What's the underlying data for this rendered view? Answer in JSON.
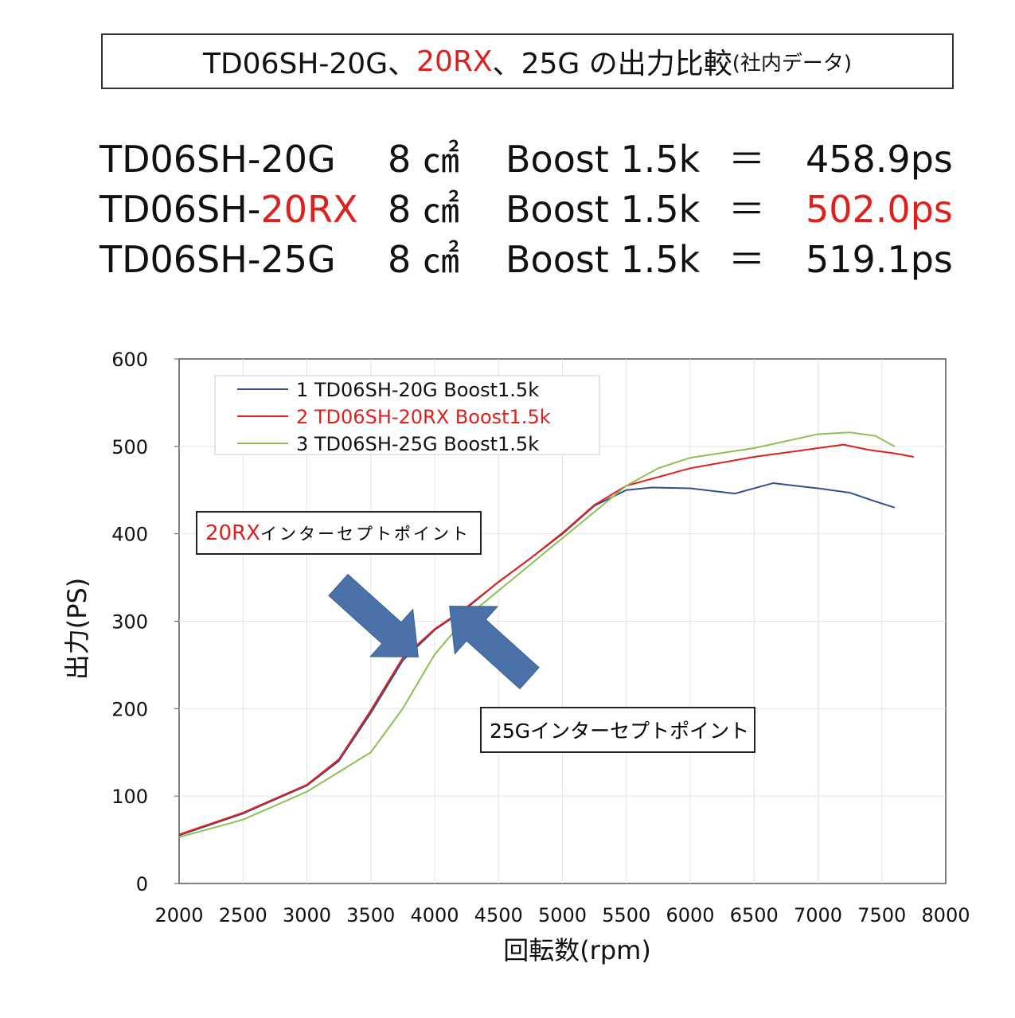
{
  "title": {
    "part1": "TD06SH-20G、",
    "part_red": "20RX",
    "part2": "、25G の出力比較",
    "note": "(社内データ)"
  },
  "specs": [
    {
      "model_prefix": "TD06SH-",
      "model_suffix": "20G",
      "area": "8 ㎠",
      "boost": "Boost 1.5k",
      "eq": "＝",
      "power": "458.9ps",
      "highlight": false
    },
    {
      "model_prefix": "TD06SH-",
      "model_suffix": "20RX",
      "area": "8 ㎠",
      "boost": "Boost 1.5k",
      "eq": "＝",
      "power": "502.0ps",
      "highlight": true
    },
    {
      "model_prefix": "TD06SH-",
      "model_suffix": "25G",
      "area": "8 ㎠",
      "boost": "Boost 1.5k",
      "eq": "＝",
      "power": "519.1ps",
      "highlight": false
    }
  ],
  "annotations": {
    "rx_red": "20RX",
    "rx_text": "インターセプトポイント",
    "g25_text": "25Gインターセプトポイント"
  },
  "colors": {
    "accent_red": "#e0201c",
    "arrow": "#4a72a8"
  },
  "chart_data": {
    "type": "line",
    "xlabel": "回転数(rpm)",
    "ylabel": "出力(PS)",
    "xlim": [
      2000,
      8000
    ],
    "ylim": [
      0,
      600
    ],
    "xticks": [
      "2000",
      "2500",
      "3000",
      "3500",
      "4000",
      "4500",
      "5000",
      "5500",
      "6000",
      "6500",
      "7000",
      "7500",
      "8000"
    ],
    "yticks": [
      "0",
      "100",
      "200",
      "300",
      "400",
      "500",
      "600"
    ],
    "grid": true,
    "legend": "top-left",
    "series": [
      {
        "name": "1 TD06SH-20G Boost1.5k",
        "color": "#2f4f8f",
        "points": [
          [
            2000,
            55
          ],
          [
            2500,
            80
          ],
          [
            3000,
            112
          ],
          [
            3250,
            140
          ],
          [
            3500,
            195
          ],
          [
            3750,
            255
          ],
          [
            4000,
            290
          ],
          [
            4250,
            315
          ],
          [
            4500,
            345
          ],
          [
            4750,
            372
          ],
          [
            5000,
            400
          ],
          [
            5250,
            432
          ],
          [
            5500,
            450
          ],
          [
            5700,
            453
          ],
          [
            6000,
            452
          ],
          [
            6350,
            446
          ],
          [
            6650,
            458
          ],
          [
            7000,
            452
          ],
          [
            7250,
            447
          ],
          [
            7450,
            437
          ],
          [
            7600,
            430
          ]
        ]
      },
      {
        "name": "2 TD06SH-20RX Boost1.5k",
        "color": "#e0201c",
        "points": [
          [
            2000,
            56
          ],
          [
            2500,
            81
          ],
          [
            3000,
            113
          ],
          [
            3250,
            142
          ],
          [
            3500,
            198
          ],
          [
            3750,
            258
          ],
          [
            4000,
            291
          ],
          [
            4250,
            316
          ],
          [
            4500,
            345
          ],
          [
            4750,
            372
          ],
          [
            5000,
            401
          ],
          [
            5250,
            433
          ],
          [
            5500,
            455
          ],
          [
            6000,
            475
          ],
          [
            6500,
            488
          ],
          [
            7000,
            498
          ],
          [
            7200,
            502
          ],
          [
            7400,
            496
          ],
          [
            7600,
            492
          ],
          [
            7750,
            488
          ]
        ]
      },
      {
        "name": "3 TD06SH-25G Boost1.5k",
        "color": "#8cc152",
        "points": [
          [
            2000,
            53
          ],
          [
            2500,
            73
          ],
          [
            3000,
            105
          ],
          [
            3500,
            150
          ],
          [
            3750,
            200
          ],
          [
            4000,
            262
          ],
          [
            4250,
            305
          ],
          [
            4500,
            335
          ],
          [
            4750,
            365
          ],
          [
            5000,
            395
          ],
          [
            5250,
            425
          ],
          [
            5500,
            455
          ],
          [
            5750,
            475
          ],
          [
            6000,
            487
          ],
          [
            6500,
            498
          ],
          [
            7000,
            514
          ],
          [
            7250,
            516
          ],
          [
            7450,
            512
          ],
          [
            7600,
            500
          ]
        ]
      }
    ]
  }
}
